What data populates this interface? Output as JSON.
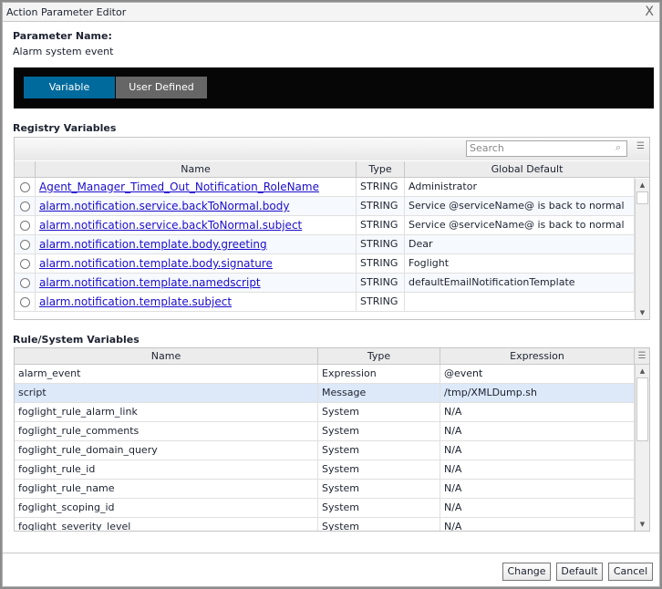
{
  "window": {
    "title": "Action Parameter Editor",
    "close": "X"
  },
  "parameter": {
    "label": "Parameter Name:",
    "value": "Alarm system event"
  },
  "tabs": [
    {
      "label": "Variable",
      "active": true,
      "color": "#006a9c"
    },
    {
      "label": "User Defined",
      "active": false,
      "color": "#666666"
    }
  ],
  "registry": {
    "title": "Registry Variables",
    "search_placeholder": "Search",
    "columns": [
      "Name",
      "Type",
      "Global Default"
    ],
    "rows": [
      [
        "Agent_Manager_Timed_Out_Notification_RoleName",
        "STRING",
        "Administrator"
      ],
      [
        "alarm.notification.service.backToNormal.body",
        "STRING",
        "Service @serviceName@ is back to normal"
      ],
      [
        "alarm.notification.service.backToNormal.subject",
        "STRING",
        "Service @serviceName@ is back to normal"
      ],
      [
        "alarm.notification.template.body.greeting",
        "STRING",
        "Dear"
      ],
      [
        "alarm.notification.template.body.signature",
        "STRING",
        "Foglight"
      ],
      [
        "alarm.notification.template.namedscript",
        "STRING",
        "defaultEmailNotificationTemplate"
      ],
      [
        "alarm.notification.template.subject",
        "STRING",
        ""
      ]
    ]
  },
  "rules": {
    "title": "Rule/System Variables",
    "columns": [
      "Name",
      "Type",
      "Expression"
    ],
    "selected_row": 1,
    "rows": [
      [
        "alarm_event",
        "Expression",
        "@event"
      ],
      [
        "script",
        "Message",
        "/tmp/XMLDump.sh"
      ],
      [
        "foglight_rule_alarm_link",
        "System",
        "N/A"
      ],
      [
        "foglight_rule_comments",
        "System",
        "N/A"
      ],
      [
        "foglight_rule_domain_query",
        "System",
        "N/A"
      ],
      [
        "foglight_rule_id",
        "System",
        "N/A"
      ],
      [
        "foglight_rule_name",
        "System",
        "N/A"
      ],
      [
        "foglight_scoping_id",
        "System",
        "N/A"
      ],
      [
        "foglight_severity_level",
        "System",
        "N/A"
      ]
    ]
  },
  "buttons": {
    "change": "Change",
    "default": "Default",
    "cancel": "Cancel"
  }
}
